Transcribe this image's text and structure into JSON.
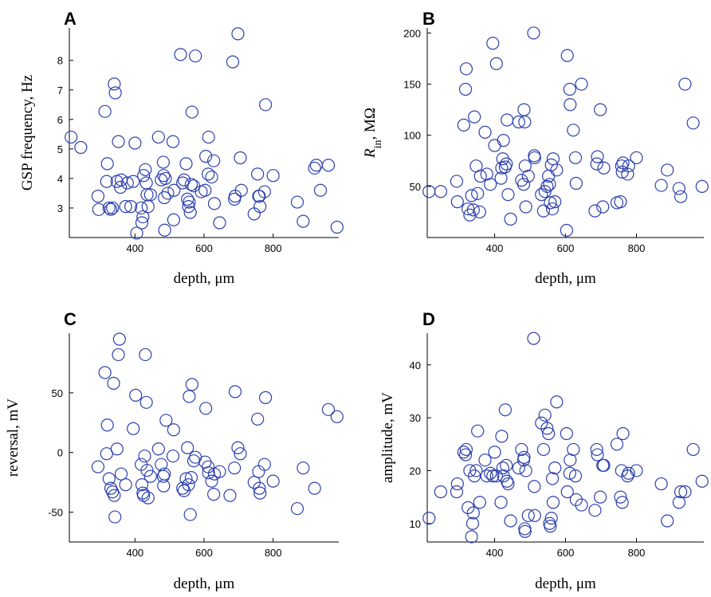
{
  "colors": {
    "marker": "#2b3fae",
    "axis": "#000000"
  },
  "chart_data": [
    {
      "type": "scatter",
      "panel": "A",
      "xlabel": "depth, μm",
      "ylabel": "GSP frequency, Hz",
      "xlim": [
        210,
        990
      ],
      "ylim": [
        2.0,
        9.1
      ],
      "xticks": [
        400,
        600,
        800
      ],
      "yticks": [
        3,
        4,
        5,
        6,
        7,
        8
      ],
      "points": [
        [
          215,
          5.4
        ],
        [
          243,
          5.05
        ],
        [
          293,
          3.4
        ],
        [
          295,
          2.95
        ],
        [
          313,
          6.27
        ],
        [
          318,
          3.9
        ],
        [
          320,
          4.5
        ],
        [
          325,
          3.0
        ],
        [
          330,
          2.95
        ],
        [
          335,
          3.0
        ],
        [
          340,
          7.2
        ],
        [
          343,
          6.9
        ],
        [
          348,
          3.9
        ],
        [
          352,
          5.25
        ],
        [
          358,
          3.7
        ],
        [
          360,
          3.95
        ],
        [
          373,
          3.05
        ],
        [
          378,
          3.85
        ],
        [
          388,
          3.05
        ],
        [
          395,
          3.9
        ],
        [
          400,
          5.2
        ],
        [
          405,
          2.15
        ],
        [
          418,
          3.0
        ],
        [
          420,
          2.5
        ],
        [
          423,
          2.7
        ],
        [
          425,
          4.1
        ],
        [
          430,
          4.3
        ],
        [
          433,
          3.85
        ],
        [
          435,
          3.45
        ],
        [
          438,
          3.05
        ],
        [
          445,
          3.45
        ],
        [
          468,
          5.4
        ],
        [
          476,
          3.95
        ],
        [
          482,
          4.55
        ],
        [
          483,
          4.1
        ],
        [
          485,
          3.35
        ],
        [
          486,
          2.25
        ],
        [
          488,
          4.0
        ],
        [
          495,
          3.5
        ],
        [
          510,
          5.25
        ],
        [
          512,
          2.6
        ],
        [
          513,
          3.6
        ],
        [
          532,
          8.2
        ],
        [
          538,
          3.85
        ],
        [
          542,
          3.95
        ],
        [
          548,
          4.5
        ],
        [
          552,
          3.3
        ],
        [
          555,
          3.05
        ],
        [
          557,
          3.2
        ],
        [
          560,
          2.85
        ],
        [
          563,
          3.8
        ],
        [
          565,
          6.25
        ],
        [
          570,
          3.75
        ],
        [
          575,
          8.15
        ],
        [
          592,
          3.55
        ],
        [
          603,
          3.6
        ],
        [
          605,
          4.75
        ],
        [
          612,
          4.15
        ],
        [
          613,
          5.4
        ],
        [
          622,
          4.05
        ],
        [
          628,
          4.6
        ],
        [
          630,
          3.15
        ],
        [
          645,
          2.5
        ],
        [
          683,
          7.95
        ],
        [
          688,
          3.3
        ],
        [
          690,
          3.4
        ],
        [
          698,
          8.9
        ],
        [
          705,
          4.7
        ],
        [
          708,
          3.6
        ],
        [
          745,
          2.8
        ],
        [
          755,
          4.15
        ],
        [
          758,
          3.4
        ],
        [
          760,
          3.4
        ],
        [
          762,
          3.05
        ],
        [
          775,
          3.55
        ],
        [
          778,
          6.5
        ],
        [
          800,
          4.1
        ],
        [
          870,
          3.2
        ],
        [
          887,
          2.55
        ],
        [
          920,
          4.35
        ],
        [
          925,
          4.45
        ],
        [
          937,
          3.6
        ],
        [
          960,
          4.45
        ],
        [
          985,
          2.35
        ]
      ]
    },
    {
      "type": "scatter",
      "panel": "B",
      "xlabel": "depth, μm",
      "ylabel_italic": "R",
      "ylabel_sub": "in",
      "ylabel_rest": ", MΩ",
      "xlim": [
        210,
        990
      ],
      "ylim": [
        0,
        205
      ],
      "xticks": [
        400,
        600,
        800
      ],
      "yticks": [
        50,
        100,
        150,
        200
      ],
      "points": [
        [
          215,
          45
        ],
        [
          248,
          45
        ],
        [
          293,
          55
        ],
        [
          295,
          35
        ],
        [
          313,
          110
        ],
        [
          318,
          145
        ],
        [
          320,
          165
        ],
        [
          325,
          28
        ],
        [
          330,
          22
        ],
        [
          335,
          41
        ],
        [
          340,
          27
        ],
        [
          343,
          118
        ],
        [
          348,
          70
        ],
        [
          352,
          43
        ],
        [
          358,
          25
        ],
        [
          360,
          60
        ],
        [
          373,
          103
        ],
        [
          378,
          62
        ],
        [
          388,
          52
        ],
        [
          395,
          190
        ],
        [
          400,
          90
        ],
        [
          405,
          170
        ],
        [
          418,
          58
        ],
        [
          420,
          68
        ],
        [
          423,
          77
        ],
        [
          425,
          95
        ],
        [
          430,
          69
        ],
        [
          433,
          72
        ],
        [
          435,
          115
        ],
        [
          438,
          42
        ],
        [
          445,
          18
        ],
        [
          468,
          113
        ],
        [
          476,
          56
        ],
        [
          482,
          52
        ],
        [
          483,
          125
        ],
        [
          485,
          113
        ],
        [
          486,
          70
        ],
        [
          488,
          30
        ],
        [
          495,
          60
        ],
        [
          510,
          200
        ],
        [
          512,
          80
        ],
        [
          513,
          78
        ],
        [
          532,
          42
        ],
        [
          538,
          26
        ],
        [
          542,
          45
        ],
        [
          548,
          50
        ],
        [
          552,
          60
        ],
        [
          555,
          52
        ],
        [
          557,
          34
        ],
        [
          560,
          71
        ],
        [
          563,
          28
        ],
        [
          565,
          77
        ],
        [
          570,
          35
        ],
        [
          575,
          66
        ],
        [
          603,
          7
        ],
        [
          605,
          178
        ],
        [
          612,
          145
        ],
        [
          613,
          130
        ],
        [
          622,
          105
        ],
        [
          628,
          78
        ],
        [
          630,
          53
        ],
        [
          645,
          150
        ],
        [
          683,
          26
        ],
        [
          688,
          72
        ],
        [
          690,
          79
        ],
        [
          698,
          125
        ],
        [
          705,
          30
        ],
        [
          708,
          68
        ],
        [
          745,
          34
        ],
        [
          755,
          35
        ],
        [
          758,
          70
        ],
        [
          760,
          64
        ],
        [
          762,
          73
        ],
        [
          775,
          62
        ],
        [
          778,
          70
        ],
        [
          800,
          78
        ],
        [
          870,
          51
        ],
        [
          887,
          66
        ],
        [
          920,
          48
        ],
        [
          925,
          40
        ],
        [
          937,
          150
        ],
        [
          960,
          112
        ],
        [
          985,
          50
        ]
      ]
    },
    {
      "type": "scatter",
      "panel": "C",
      "xlabel": "depth, μm",
      "ylabel": "reversal, mV",
      "xlim": [
        210,
        990
      ],
      "ylim": [
        -75,
        100
      ],
      "xticks": [
        400,
        600,
        800
      ],
      "yticks": [
        -50,
        0,
        50
      ],
      "points": [
        [
          293,
          -12
        ],
        [
          313,
          67
        ],
        [
          318,
          -1
        ],
        [
          320,
          23
        ],
        [
          325,
          -22
        ],
        [
          330,
          -30
        ],
        [
          335,
          -33
        ],
        [
          338,
          58
        ],
        [
          340,
          -36
        ],
        [
          342,
          -54
        ],
        [
          348,
          3
        ],
        [
          352,
          82
        ],
        [
          355,
          95
        ],
        [
          360,
          -18
        ],
        [
          373,
          -27
        ],
        [
          395,
          20
        ],
        [
          402,
          48
        ],
        [
          418,
          -10
        ],
        [
          420,
          -27
        ],
        [
          423,
          -34
        ],
        [
          425,
          -36
        ],
        [
          428,
          -3
        ],
        [
          430,
          82
        ],
        [
          433,
          42
        ],
        [
          435,
          -15
        ],
        [
          438,
          -38
        ],
        [
          445,
          -20
        ],
        [
          468,
          3
        ],
        [
          476,
          -10
        ],
        [
          482,
          -20
        ],
        [
          483,
          -28
        ],
        [
          485,
          -18
        ],
        [
          490,
          27
        ],
        [
          510,
          -3
        ],
        [
          512,
          19
        ],
        [
          538,
          -30
        ],
        [
          542,
          -32
        ],
        [
          548,
          -22
        ],
        [
          552,
          4
        ],
        [
          555,
          -27
        ],
        [
          557,
          47
        ],
        [
          560,
          -52
        ],
        [
          563,
          -21
        ],
        [
          565,
          57
        ],
        [
          570,
          -7
        ],
        [
          575,
          -4
        ],
        [
          603,
          -8
        ],
        [
          605,
          37
        ],
        [
          612,
          -12
        ],
        [
          613,
          -17
        ],
        [
          622,
          -24
        ],
        [
          628,
          -35
        ],
        [
          630,
          -18
        ],
        [
          645,
          -16
        ],
        [
          675,
          -36
        ],
        [
          688,
          -13
        ],
        [
          690,
          51
        ],
        [
          698,
          4
        ],
        [
          705,
          -1
        ],
        [
          745,
          -25
        ],
        [
          755,
          28
        ],
        [
          758,
          -16
        ],
        [
          760,
          -30
        ],
        [
          762,
          -34
        ],
        [
          775,
          -10
        ],
        [
          778,
          46
        ],
        [
          800,
          -24
        ],
        [
          870,
          -47
        ],
        [
          887,
          -13
        ],
        [
          920,
          -30
        ],
        [
          960,
          36
        ],
        [
          985,
          30
        ]
      ]
    },
    {
      "type": "scatter",
      "panel": "D",
      "xlabel": "depth, μm",
      "ylabel": "amplitude, mV",
      "xlim": [
        210,
        990
      ],
      "ylim": [
        6.5,
        46
      ],
      "xticks": [
        400,
        600,
        800
      ],
      "yticks": [
        10,
        20,
        30,
        40
      ],
      "points": [
        [
          215,
          11
        ],
        [
          248,
          16
        ],
        [
          293,
          16
        ],
        [
          295,
          17.5
        ],
        [
          313,
          23.5
        ],
        [
          318,
          23
        ],
        [
          320,
          24
        ],
        [
          325,
          13
        ],
        [
          330,
          20
        ],
        [
          335,
          7.5
        ],
        [
          338,
          10
        ],
        [
          340,
          12
        ],
        [
          343,
          19
        ],
        [
          348,
          20
        ],
        [
          352,
          27.5
        ],
        [
          358,
          14
        ],
        [
          373,
          22
        ],
        [
          378,
          19
        ],
        [
          388,
          19.5
        ],
        [
          395,
          19
        ],
        [
          400,
          23.5
        ],
        [
          405,
          19
        ],
        [
          418,
          14
        ],
        [
          420,
          26.5
        ],
        [
          423,
          20.5
        ],
        [
          425,
          19
        ],
        [
          430,
          31.5
        ],
        [
          433,
          21
        ],
        [
          435,
          18
        ],
        [
          438,
          17.5
        ],
        [
          445,
          10.5
        ],
        [
          468,
          20.5
        ],
        [
          476,
          24
        ],
        [
          482,
          22
        ],
        [
          483,
          22.5
        ],
        [
          485,
          9
        ],
        [
          486,
          8.5
        ],
        [
          488,
          20
        ],
        [
          495,
          11.5
        ],
        [
          510,
          45
        ],
        [
          512,
          17
        ],
        [
          513,
          11.5
        ],
        [
          532,
          29
        ],
        [
          538,
          24
        ],
        [
          542,
          30.5
        ],
        [
          548,
          28
        ],
        [
          552,
          27
        ],
        [
          555,
          10
        ],
        [
          557,
          9.5
        ],
        [
          560,
          11
        ],
        [
          563,
          18.5
        ],
        [
          565,
          14
        ],
        [
          570,
          20.5
        ],
        [
          575,
          33
        ],
        [
          603,
          27
        ],
        [
          605,
          16
        ],
        [
          612,
          19.5
        ],
        [
          613,
          22
        ],
        [
          622,
          24
        ],
        [
          628,
          19
        ],
        [
          630,
          14.5
        ],
        [
          645,
          13.5
        ],
        [
          683,
          12.5
        ],
        [
          688,
          24
        ],
        [
          690,
          23
        ],
        [
          698,
          15
        ],
        [
          705,
          21
        ],
        [
          708,
          21
        ],
        [
          745,
          25
        ],
        [
          755,
          15
        ],
        [
          758,
          20
        ],
        [
          760,
          14
        ],
        [
          762,
          27
        ],
        [
          775,
          19
        ],
        [
          778,
          19.5
        ],
        [
          800,
          20
        ],
        [
          870,
          17.5
        ],
        [
          887,
          10.5
        ],
        [
          920,
          14
        ],
        [
          925,
          16
        ],
        [
          937,
          16
        ],
        [
          960,
          24
        ],
        [
          985,
          18
        ]
      ]
    }
  ]
}
